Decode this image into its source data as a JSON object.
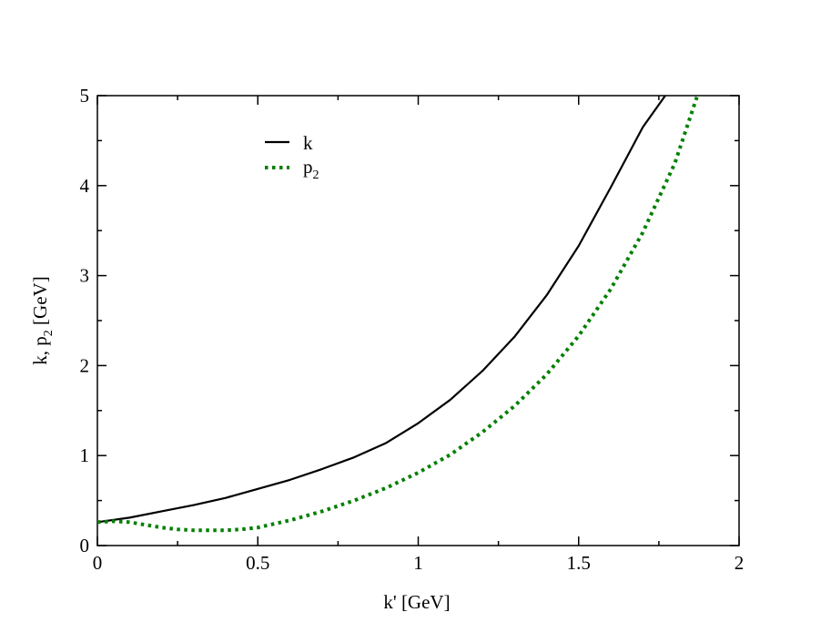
{
  "chart_data": {
    "type": "line",
    "xlabel": "k' [GeV]",
    "ylabel": {
      "main": "k,  p",
      "sub": "2",
      "tail": "  [GeV]"
    },
    "xlim": [
      0,
      2
    ],
    "ylim": [
      0,
      5
    ],
    "x_ticks": [
      0,
      0.5,
      1,
      1.5,
      2
    ],
    "x_tick_labels": [
      "0",
      "0.5",
      "1",
      "1.5",
      "2"
    ],
    "y_ticks": [
      0,
      1,
      2,
      3,
      4,
      5
    ],
    "y_tick_labels": [
      "0",
      "1",
      "2",
      "3",
      "4",
      "5"
    ],
    "grid": false,
    "legend_position": "top-left",
    "series": [
      {
        "name": "k",
        "style": "solid",
        "color": "#000000",
        "x": [
          0,
          0.1,
          0.2,
          0.3,
          0.4,
          0.5,
          0.6,
          0.7,
          0.8,
          0.9,
          1.0,
          1.1,
          1.2,
          1.3,
          1.4,
          1.5,
          1.6,
          1.7,
          1.77
        ],
        "y": [
          0.26,
          0.31,
          0.38,
          0.45,
          0.53,
          0.63,
          0.73,
          0.85,
          0.98,
          1.14,
          1.36,
          1.62,
          1.94,
          2.32,
          2.78,
          3.33,
          3.98,
          4.65,
          5.0
        ]
      },
      {
        "name": "p",
        "name_sub": "2",
        "style": "dotted",
        "color": "#008000",
        "x": [
          0,
          0.05,
          0.1,
          0.15,
          0.2,
          0.25,
          0.3,
          0.35,
          0.4,
          0.45,
          0.5,
          0.6,
          0.7,
          0.8,
          0.9,
          1.0,
          1.1,
          1.2,
          1.3,
          1.4,
          1.5,
          1.6,
          1.7,
          1.8,
          1.87
        ],
        "y": [
          0.26,
          0.27,
          0.26,
          0.23,
          0.2,
          0.18,
          0.17,
          0.17,
          0.17,
          0.18,
          0.2,
          0.28,
          0.38,
          0.5,
          0.64,
          0.81,
          1.01,
          1.26,
          1.55,
          1.9,
          2.33,
          2.85,
          3.48,
          4.25,
          5.0
        ]
      }
    ]
  }
}
